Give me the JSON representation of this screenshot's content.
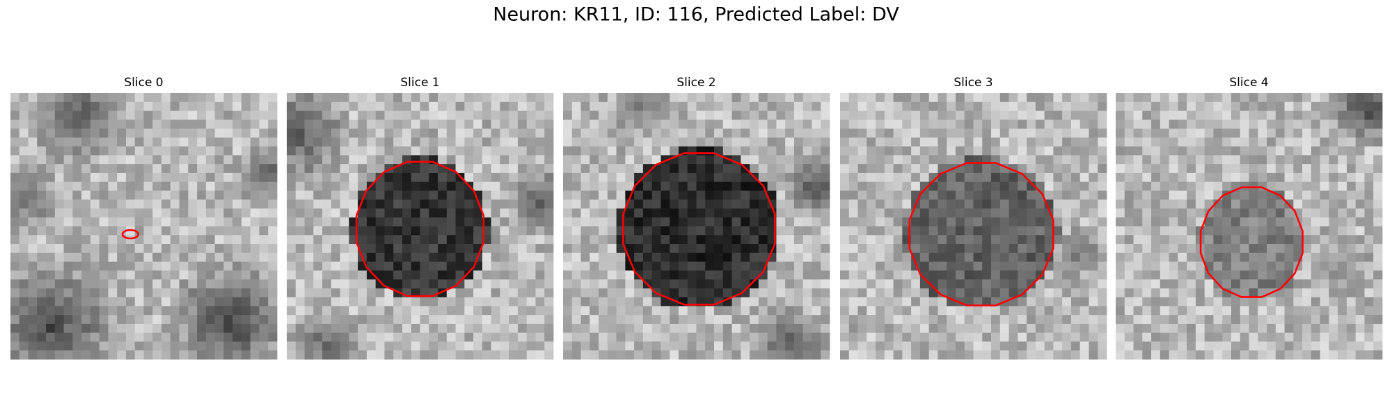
{
  "title": "Neuron: KR11, ID: 116, Predicted Label: DV",
  "panels": [
    {
      "title": "Slice 0"
    },
    {
      "title": "Slice 1"
    },
    {
      "title": "Slice 2"
    },
    {
      "title": "Slice 3"
    },
    {
      "title": "Slice 4"
    }
  ]
}
